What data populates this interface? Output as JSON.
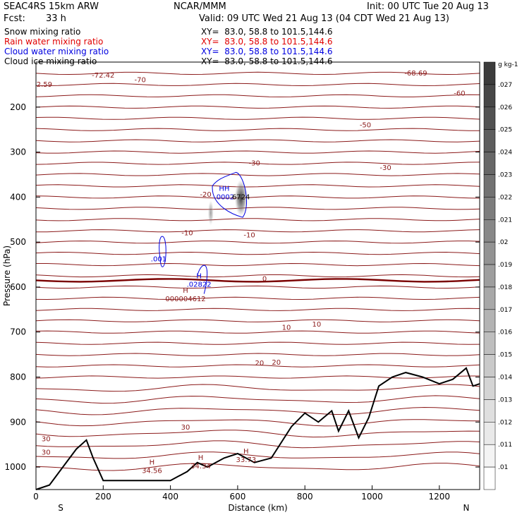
{
  "header": {
    "model": "SEAC4RS 15km ARW",
    "org": "NCAR/MMM",
    "init": "Init: 00 UTC Tue 20 Aug 13",
    "fcst_label": "Fcst:",
    "fcst_value": "33 h",
    "valid": "Valid: 09 UTC Wed 21 Aug 13 (04 CDT Wed 21 Aug 13)",
    "fields": [
      {
        "name": "Snow mixing ratio",
        "xy": "XY=  83.0, 58.8 to 101.5,144.6",
        "color": "#000000"
      },
      {
        "name": "Rain water mixing ratio",
        "xy": "XY=  83.0, 58.8 to 101.5,144.6",
        "color": "#e00000"
      },
      {
        "name": "Cloud water mixing ratio",
        "xy": "XY=  83.0, 58.8 to 101.5,144.6",
        "color": "#0000e0"
      },
      {
        "name": "Cloud ice mixing ratio",
        "xy": "XY=  83.0, 58.8 to 101.5,144.6",
        "color": "#000000"
      }
    ]
  },
  "chart_data": {
    "type": "cross-section",
    "xlabel": "Distance (km)",
    "ylabel": "Pressure (hPa)",
    "xlim": [
      0,
      1320
    ],
    "ylim": [
      1050,
      100
    ],
    "x_ticks": [
      0,
      200,
      400,
      600,
      800,
      1000,
      1200
    ],
    "y_ticks": [
      200,
      300,
      400,
      500,
      600,
      700,
      800,
      900,
      1000
    ],
    "x_end_labels": {
      "left": "S",
      "right": "N"
    },
    "colorbar": {
      "unit": "g kg-1",
      "levels": [
        ".027",
        ".026",
        ".025",
        ".024",
        ".023",
        ".022",
        ".021",
        ".02",
        ".019",
        ".018",
        ".017",
        ".016",
        ".015",
        ".014",
        ".013",
        ".012",
        ".011",
        ".01"
      ]
    },
    "temperature_labels": [
      {
        "text": "-72.42",
        "x": 200,
        "p": 130
      },
      {
        "text": "-70",
        "x": 310,
        "p": 140
      },
      {
        "text": "-68.69",
        "x": 1130,
        "p": 125
      },
      {
        "text": "-60",
        "x": 1260,
        "p": 170
      },
      {
        "text": "-50",
        "x": 980,
        "p": 240
      },
      {
        "text": "-30",
        "x": 650,
        "p": 325
      },
      {
        "text": "-30",
        "x": 1040,
        "p": 335
      },
      {
        "text": "-20",
        "x": 505,
        "p": 395
      },
      {
        "text": "-10",
        "x": 450,
        "p": 480
      },
      {
        "text": "-10",
        "x": 635,
        "p": 485
      },
      {
        "text": "0",
        "x": 680,
        "p": 582
      },
      {
        "text": "10",
        "x": 835,
        "p": 683
      },
      {
        "text": "10",
        "x": 745,
        "p": 690
      },
      {
        "text": "20",
        "x": 715,
        "p": 768
      },
      {
        "text": "20",
        "x": 665,
        "p": 769
      },
      {
        "text": "30",
        "x": 445,
        "p": 912
      },
      {
        "text": "30",
        "x": 30,
        "p": 938
      },
      {
        "text": "30",
        "x": 30,
        "p": 968
      },
      {
        "text": "2.59",
        "x": 25,
        "p": 150
      }
    ],
    "markers": [
      {
        "text": "H",
        "value": "34.56",
        "x": 345,
        "p": 1010
      },
      {
        "text": "H",
        "value": "34.34",
        "x": 490,
        "p": 1000
      },
      {
        "text": "H",
        "value": "33.73",
        "x": 625,
        "p": 986
      },
      {
        "text": "H",
        "value": "000004612",
        "x": 445,
        "p": 628
      },
      {
        "text": "H",
        "value": ".02822",
        "x": 485,
        "p": 596
      },
      {
        "text": "HH",
        "value": ".0002",
        "x": 560,
        "p": 402
      },
      {
        "text": "",
        "value": "6724",
        "x": 610,
        "p": 402
      },
      {
        "text": "",
        "value": ".001",
        "x": 365,
        "p": 540
      }
    ],
    "terrain": {
      "x": [
        0,
        40,
        80,
        120,
        150,
        170,
        200,
        300,
        400,
        450,
        480,
        510,
        560,
        600,
        650,
        700,
        760,
        800,
        840,
        880,
        900,
        930,
        960,
        990,
        1020,
        1060,
        1100,
        1150,
        1200,
        1240,
        1280,
        1300,
        1320
      ],
      "p": [
        1050,
        1040,
        1000,
        960,
        940,
        980,
        1030,
        1030,
        1030,
        1010,
        990,
        1000,
        980,
        970,
        990,
        980,
        910,
        880,
        900,
        875,
        920,
        875,
        935,
        890,
        820,
        800,
        790,
        800,
        815,
        805,
        780,
        820,
        815
      ]
    }
  }
}
